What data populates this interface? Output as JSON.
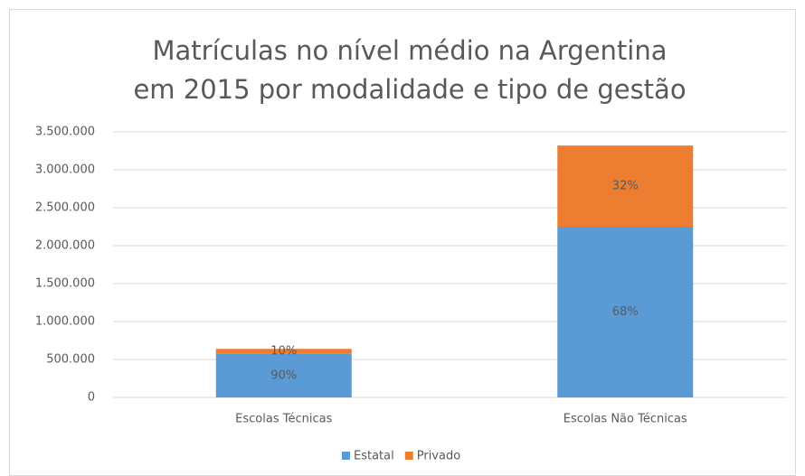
{
  "chart_data": {
    "type": "stacked_bar",
    "title": [
      "Matrículas no nível médio na Argentina",
      "em 2015 por modalidade e tipo de gestão"
    ],
    "categories": [
      "Escolas Técnicas",
      "Escolas Não Técnicas"
    ],
    "series": [
      {
        "name": "Estatal",
        "color": "#5b9bd5",
        "values": [
          576000,
          2250000
        ],
        "value_labels": [
          "90%",
          "68%"
        ]
      },
      {
        "name": "Privado",
        "color": "#ed7d31",
        "values": [
          64000,
          1070000
        ],
        "value_labels": [
          "10%",
          "32%"
        ]
      }
    ],
    "ylim": [
      0,
      3500000
    ],
    "yticks": [
      0,
      {
        "value": 500000,
        "label": "500.000"
      },
      {
        "value": 1000000,
        "label": "1.000.000"
      },
      {
        "value": 1500000,
        "label": "1.500.000"
      },
      {
        "value": 2000000,
        "label": "2.000.000"
      },
      {
        "value": 2500000,
        "label": "2.500.000"
      },
      {
        "value": 3000000,
        "label": "3.000.000"
      },
      {
        "value": 3500000,
        "label": "3.500.000"
      }
    ],
    "grid": true,
    "legend": "bottom"
  }
}
